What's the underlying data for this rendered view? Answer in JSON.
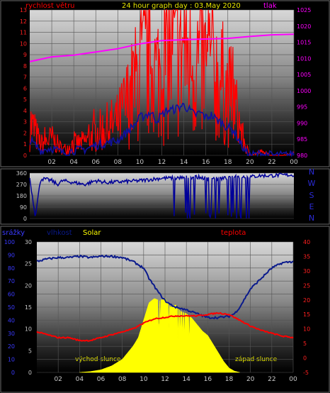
{
  "header": {
    "title": "24 hour graph day : 03.May 2020"
  },
  "colors": {
    "wind_label": "#ff0000",
    "pressure": "#ff00ff",
    "direction": "#000099",
    "humidity": "#0a1a8c",
    "solar": "#ffff00",
    "temperature": "#ff0000",
    "title": "#e6e600",
    "compass": "#2b2bd6",
    "precip_label": "#3a3aff"
  },
  "chart_data": [
    {
      "type": "line",
      "id": "wind-pressure",
      "x_ticks": [
        "02",
        "04",
        "06",
        "08",
        "10",
        "12",
        "14",
        "16",
        "18",
        "20",
        "22",
        "00"
      ],
      "series": [
        {
          "name": "rychlost větru",
          "axis": "left",
          "ylim": [
            0,
            13
          ],
          "yticks": [
            "0",
            "1",
            "2",
            "3",
            "4",
            "5",
            "6",
            "7",
            "8",
            "9",
            "10",
            "11",
            "12",
            "13"
          ],
          "x_hours": [
            0,
            1,
            2,
            3,
            4,
            5,
            6,
            7,
            8,
            8.5,
            9,
            9.5,
            10,
            10.5,
            11,
            11.5,
            12,
            12.5,
            13,
            13.5,
            14,
            14.5,
            15,
            15.5,
            16,
            16.5,
            17,
            17.5,
            18,
            18.5,
            19,
            19.5,
            20,
            21,
            22,
            23,
            24
          ],
          "values": [
            3,
            1,
            1.5,
            0.5,
            1,
            1.2,
            2,
            2.5,
            3,
            4,
            5,
            6,
            7.5,
            8,
            8.5,
            7,
            8,
            9,
            9,
            9.5,
            10,
            9,
            8,
            8.5,
            7.5,
            8,
            7,
            6.5,
            5.5,
            5,
            3,
            1,
            0,
            0.3,
            0,
            0,
            0.2
          ]
        },
        {
          "name": "tlak",
          "axis": "right",
          "ylim": [
            980,
            1025
          ],
          "yticks": [
            "980",
            "985",
            "990",
            "995",
            "1000",
            "1005",
            "1010",
            "1015",
            "1020",
            "1025"
          ],
          "x_hours": [
            0,
            2,
            4,
            6,
            8,
            10,
            12,
            14,
            16,
            18,
            20,
            22,
            24
          ],
          "values": [
            1009,
            1010.5,
            1011,
            1012,
            1013,
            1014.5,
            1015.5,
            1015.8,
            1016,
            1016.2,
            1016.8,
            1017.3,
            1017.5
          ]
        }
      ]
    },
    {
      "type": "line",
      "id": "wind-direction",
      "ylim": [
        0,
        360
      ],
      "yticks": [
        "0",
        "90",
        "180",
        "270",
        "360"
      ],
      "compass": [
        "N",
        "W",
        "S",
        "E",
        "N"
      ],
      "series": [
        {
          "x_hours": [
            0,
            0.5,
            1,
            1.5,
            2,
            2.5,
            3,
            4,
            5,
            6,
            7,
            8,
            9,
            10,
            11,
            12,
            13,
            14,
            15,
            16,
            17,
            18,
            19,
            20,
            21,
            22,
            23,
            24
          ],
          "values": [
            320,
            20,
            315,
            310,
            300,
            270,
            300,
            285,
            270,
            300,
            285,
            290,
            295,
            300,
            310,
            320,
            320,
            325,
            330,
            320,
            315,
            320,
            330,
            330,
            340,
            340,
            345,
            345
          ]
        }
      ]
    },
    {
      "type": "line",
      "id": "humidity-solar-temperature",
      "x_ticks": [
        "02",
        "04",
        "06",
        "08",
        "10",
        "12",
        "14",
        "16",
        "18",
        "20",
        "22",
        "00"
      ],
      "axes": [
        {
          "name": "srážky",
          "ylim": [
            0,
            100
          ],
          "yticks": [
            "0",
            "10",
            "20",
            "30",
            "40",
            "50",
            "60",
            "70",
            "80",
            "90",
            "100"
          ]
        },
        {
          "name": "vlhkost",
          "ylim": [
            0,
            30
          ],
          "yticks": [
            "0",
            "5",
            "10",
            "15",
            "20",
            "25",
            "30"
          ]
        },
        {
          "name": "teplota",
          "ylim": [
            -5,
            40
          ],
          "yticks": [
            "-5",
            "0",
            "5",
            "10",
            "15",
            "20",
            "25",
            "30",
            "35",
            "40"
          ]
        }
      ],
      "series": [
        {
          "name": "vlhkost",
          "x_hours": [
            0,
            1,
            2,
            3,
            4,
            5,
            6,
            7,
            8,
            9,
            10,
            10.5,
            11,
            11.5,
            12,
            12.5,
            13,
            14,
            15,
            16,
            17,
            18,
            18.5,
            19,
            19.5,
            20,
            21,
            22,
            23,
            24
          ],
          "values": [
            85,
            87,
            88,
            88,
            89,
            88,
            89,
            89,
            88,
            85,
            80,
            72,
            66,
            60,
            55,
            52,
            50,
            48,
            45,
            42,
            42,
            43,
            45,
            50,
            57,
            64,
            72,
            80,
            84,
            85
          ]
        },
        {
          "name": "teplota",
          "x_hours": [
            0,
            1,
            2,
            3,
            4,
            5,
            6,
            7,
            8,
            9,
            10,
            11,
            12,
            13,
            14,
            15,
            16,
            17,
            18,
            19,
            20,
            21,
            22,
            23,
            24
          ],
          "values": [
            9,
            8,
            7,
            7,
            6,
            6,
            7,
            8,
            9,
            10,
            12,
            13.5,
            14,
            14.5,
            14.5,
            14.5,
            15,
            15.5,
            15,
            13,
            11,
            9.5,
            8.5,
            7.5,
            7
          ]
        },
        {
          "name": "Solar",
          "x_hours": [
            4,
            5,
            6,
            7,
            8,
            8.5,
            9,
            9.5,
            10,
            10.5,
            11,
            11.5,
            12,
            12.5,
            13,
            13.5,
            14,
            14.5,
            15,
            15.5,
            16,
            16.5,
            17,
            17.5,
            18,
            18.5,
            19
          ],
          "values": [
            0,
            0.2,
            0.6,
            1.5,
            3,
            4.5,
            6,
            8,
            12,
            16,
            17,
            16.5,
            17,
            15,
            15.5,
            14,
            13.5,
            12.5,
            11,
            9.5,
            8.5,
            6.5,
            4.5,
            2.5,
            1,
            0.3,
            0
          ]
        }
      ],
      "annotations": [
        "východ slunce",
        "západ slunce"
      ]
    }
  ]
}
